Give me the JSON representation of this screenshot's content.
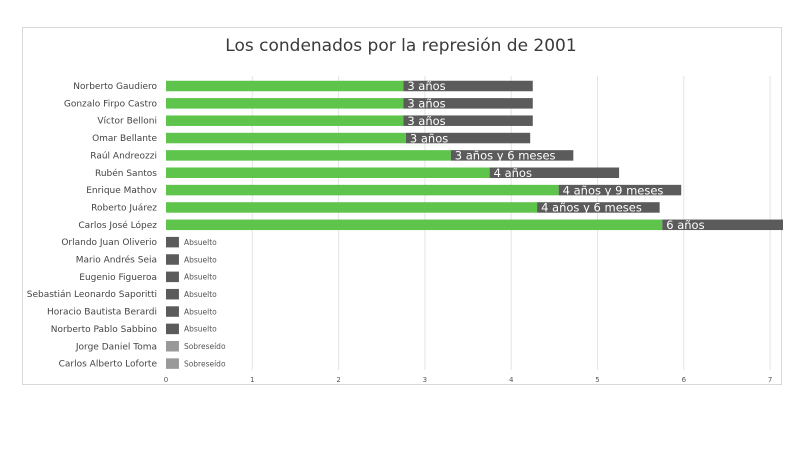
{
  "chart_data": {
    "type": "bar",
    "orientation": "horizontal",
    "stacked": true,
    "title": "Los condenados por la represión de 2001",
    "xlim": [
      0,
      7
    ],
    "xticks": [
      0,
      1,
      2,
      3,
      4,
      5,
      6,
      7
    ],
    "grid": "vertical",
    "legend": "none",
    "colors": {
      "green": "#5fc44b",
      "dark": "#5b5b5b",
      "light": "#999999"
    },
    "rows": [
      {
        "name": "Norberto Gaudiero",
        "green": 2.75,
        "dark": 1.5,
        "label": "3 años",
        "label_style": "inside"
      },
      {
        "name": "Gonzalo Firpo Castro",
        "green": 2.75,
        "dark": 1.5,
        "label": "3 años",
        "label_style": "inside"
      },
      {
        "name": "Víctor Belloni",
        "green": 2.75,
        "dark": 1.5,
        "label": "3 años",
        "label_style": "inside"
      },
      {
        "name": "Omar Bellante",
        "green": 2.78,
        "dark": 1.44,
        "label": "3 años",
        "label_style": "inside"
      },
      {
        "name": "Raúl Andreozzi",
        "green": 3.3,
        "dark": 1.42,
        "label": "3 años y 6 meses",
        "label_style": "inside"
      },
      {
        "name": "Rubén Santos",
        "green": 3.75,
        "dark": 1.5,
        "label": "4 años",
        "label_style": "inside"
      },
      {
        "name": "Enrique Mathov",
        "green": 4.55,
        "dark": 1.42,
        "label": "4 años  y 9 meses",
        "label_style": "inside"
      },
      {
        "name": "Roberto Juárez",
        "green": 4.3,
        "dark": 1.42,
        "label": "4 años  y 6 meses",
        "label_style": "inside"
      },
      {
        "name": "Carlos José López",
        "green": 5.75,
        "dark": 1.5,
        "label": "6 años",
        "label_style": "inside"
      },
      {
        "name": "Orlando Juan Oliverio",
        "green": 0,
        "dark": 0.15,
        "label": "Absuelto",
        "label_style": "outside"
      },
      {
        "name": "Mario Andrés Seia",
        "green": 0,
        "dark": 0.15,
        "label": "Absuelto",
        "label_style": "outside"
      },
      {
        "name": "Eugenio Figueroa",
        "green": 0,
        "dark": 0.15,
        "label": "Absuelto",
        "label_style": "outside"
      },
      {
        "name": "Sebastián Leonardo Saporitti",
        "green": 0,
        "dark": 0.15,
        "label": "Absuelto",
        "label_style": "outside"
      },
      {
        "name": "Horacio Bautista Berardi",
        "green": 0,
        "dark": 0.15,
        "label": "Absuelto",
        "label_style": "outside"
      },
      {
        "name": "Norberto Pablo Sabbino",
        "green": 0,
        "dark": 0.15,
        "label": "Absuelto",
        "label_style": "outside"
      },
      {
        "name": "Jorge Daniel Toma",
        "green": 0,
        "light": 0.15,
        "label": "Sobreseído",
        "label_style": "outside"
      },
      {
        "name": "Carlos Alberto Loforte",
        "green": 0,
        "light": 0.15,
        "label": "Sobreseído",
        "label_style": "outside"
      }
    ]
  }
}
